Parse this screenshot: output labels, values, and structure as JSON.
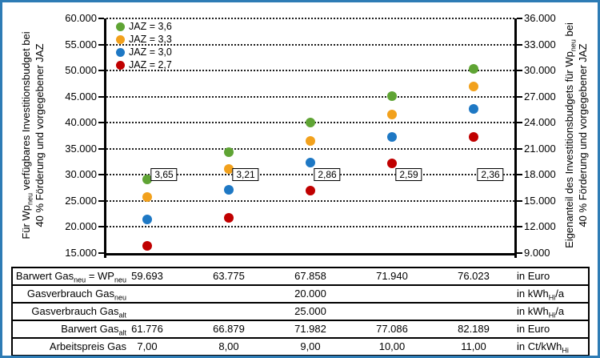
{
  "frame": {
    "border_color": "#2e7cb5"
  },
  "chart_data": {
    "type": "scatter",
    "title": "",
    "x_meaning": "Barwert Gas_neu = WP_neu in Euro",
    "x_categories": [
      "59.693",
      "63.775",
      "67.858",
      "71.940",
      "76.023"
    ],
    "series": [
      {
        "name": "JAZ = 3,6",
        "color": "#5fa434",
        "values": [
          29200,
          34400,
          40000,
          45100,
          50400
        ]
      },
      {
        "name": "JAZ = 3,3",
        "color": "#f2a11c",
        "values": [
          25800,
          31100,
          36500,
          41500,
          46900
        ]
      },
      {
        "name": "JAZ = 3,0",
        "color": "#1e78c4",
        "values": [
          21500,
          27100,
          32300,
          37300,
          42700
        ]
      },
      {
        "name": "JAZ = 2,7",
        "color": "#c00000",
        "values": [
          16400,
          21700,
          27000,
          32200,
          37300
        ]
      }
    ],
    "breakeven_labels": {
      "value_level": 30000,
      "items": [
        "3,65",
        "3,21",
        "2,86",
        "2,59",
        "2,36"
      ]
    },
    "left_axis": {
      "min": 15000,
      "max": 60000,
      "step": 5000,
      "tick_labels": [
        "60.000",
        "55.000",
        "50.000",
        "45.000",
        "40.000",
        "35.000",
        "30.000",
        "25.000",
        "20.000",
        "15.000"
      ],
      "label_line1_parts": [
        {
          "t": "Für Wp"
        },
        {
          "s": "neu"
        },
        {
          "t": " verfügbares Investitionsbudget bei"
        }
      ],
      "label_line2_parts": [
        {
          "t": "40 % Förderung und vorgegebener JAZ"
        }
      ]
    },
    "right_axis": {
      "min": 9000,
      "max": 36000,
      "step": 3000,
      "tick_labels": [
        "36.000",
        "33.000",
        "30.000",
        "27.000",
        "24.000",
        "21.000",
        "18.000",
        "15.000",
        "12.000",
        "9.000"
      ],
      "label_line1_parts": [
        {
          "t": "Eigenanteil des Investitionsbudgets für Wp"
        },
        {
          "s": "neu"
        },
        {
          "t": " bei"
        }
      ],
      "label_line2_parts": [
        {
          "t": "40 % Förderung und vorgegebener JAZ"
        }
      ]
    },
    "grid": "horizontal-dotted",
    "legend_position": "top-left"
  },
  "table": {
    "rows": [
      {
        "label_parts": [
          {
            "t": "Barwert Gas"
          },
          {
            "s": "neu"
          },
          {
            "t": " = WP"
          },
          {
            "s": "neu"
          }
        ],
        "values": [
          "59.693",
          "63.775",
          "67.858",
          "71.940",
          "76.023"
        ],
        "unit_parts": [
          {
            "t": "in Euro"
          }
        ]
      },
      {
        "label_parts": [
          {
            "t": "Gasverbrauch Gas"
          },
          {
            "s": "neu"
          }
        ],
        "span_value": "20.000",
        "unit_parts": [
          {
            "t": "in kWh"
          },
          {
            "s": "Hi"
          },
          {
            "t": "/a"
          }
        ]
      },
      {
        "label_parts": [
          {
            "t": "Gasverbrauch Gas"
          },
          {
            "s": "alt"
          }
        ],
        "span_value": "25.000",
        "unit_parts": [
          {
            "t": "in kWh"
          },
          {
            "s": "Hi"
          },
          {
            "t": "/a"
          }
        ]
      },
      {
        "label_parts": [
          {
            "t": "Barwert Gas"
          },
          {
            "s": "alt"
          }
        ],
        "values": [
          "61.776",
          "66.879",
          "71.982",
          "77.086",
          "82.189"
        ],
        "unit_parts": [
          {
            "t": "in Euro"
          }
        ]
      },
      {
        "label_parts": [
          {
            "t": "Arbeitspreis Gas"
          }
        ],
        "values": [
          "7,00",
          "8,00",
          "9,00",
          "10,00",
          "11,00"
        ],
        "unit_parts": [
          {
            "t": "in Ct/kWh"
          },
          {
            "s": "Hi"
          }
        ]
      }
    ]
  }
}
